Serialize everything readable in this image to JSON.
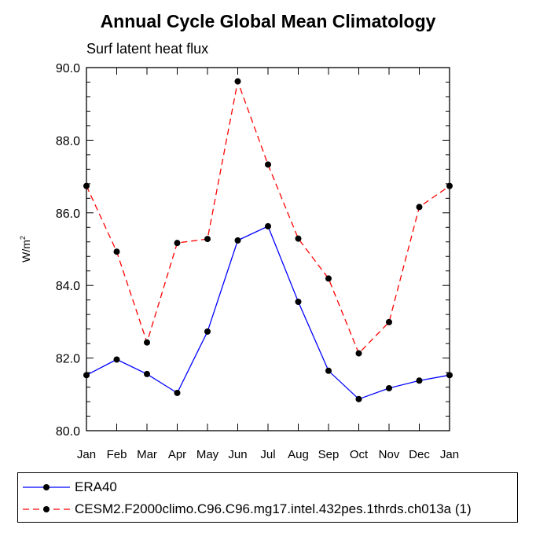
{
  "chart_data": {
    "type": "line",
    "title": "Annual Cycle Global Mean Climatology",
    "subtitle": "Surf latent heat flux",
    "ylabel": "W/m",
    "ylabel_sup": "2",
    "categories": [
      "Jan",
      "Feb",
      "Mar",
      "Apr",
      "May",
      "Jun",
      "Jul",
      "Aug",
      "Sep",
      "Oct",
      "Nov",
      "Dec",
      "Jan"
    ],
    "ylim": [
      80.0,
      90.0
    ],
    "yticks": [
      80.0,
      82.0,
      84.0,
      86.0,
      88.0,
      90.0
    ],
    "ytick_labels": [
      "80.0",
      "82.0",
      "84.0",
      "86.0",
      "88.0",
      "90.0"
    ],
    "grid": false,
    "legend_position": "bottom",
    "series": [
      {
        "name": "ERA40",
        "color": "#0000ff",
        "dash": "solid",
        "marker": "circle",
        "values": [
          81.53,
          81.96,
          81.56,
          81.04,
          82.73,
          85.24,
          85.63,
          83.55,
          81.65,
          80.87,
          81.17,
          81.38,
          81.53
        ]
      },
      {
        "name": "CESM2.F2000climo.C96.C96.mg17.intel.432pes.1thrds.ch013a (1)",
        "color": "#ff0000",
        "dash": "dashed",
        "marker": "circle",
        "values": [
          86.74,
          84.93,
          82.43,
          85.17,
          85.28,
          89.62,
          87.33,
          85.29,
          84.19,
          82.13,
          82.99,
          86.16,
          86.74
        ]
      }
    ]
  }
}
